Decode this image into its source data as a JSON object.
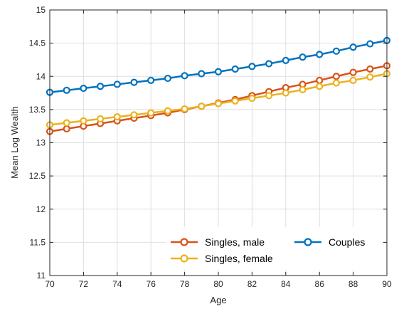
{
  "chart_data": {
    "type": "line",
    "title": "",
    "xlabel": "Age",
    "ylabel": "Mean Log Wealth",
    "xlim": [
      70,
      90
    ],
    "ylim": [
      11,
      15
    ],
    "xticks": [
      70,
      72,
      74,
      76,
      78,
      80,
      82,
      84,
      86,
      88,
      90
    ],
    "yticks": [
      11,
      11.5,
      12,
      12.5,
      13,
      13.5,
      14,
      14.5,
      15
    ],
    "xtick_labels": [
      "70",
      "72",
      "74",
      "76",
      "78",
      "80",
      "82",
      "84",
      "86",
      "88",
      "90"
    ],
    "ytick_labels": [
      "11",
      "11.5",
      "12",
      "12.5",
      "13",
      "13.5",
      "14",
      "14.5",
      "15"
    ],
    "grid": true,
    "legend_placement": "bottom-right",
    "x": [
      70,
      71,
      72,
      73,
      74,
      75,
      76,
      77,
      78,
      79,
      80,
      81,
      82,
      83,
      84,
      85,
      86,
      87,
      88,
      89,
      90
    ],
    "series": [
      {
        "name": "Singles, male",
        "color": "#D95319",
        "marker": "circle",
        "values": [
          13.17,
          13.21,
          13.25,
          13.29,
          13.33,
          13.37,
          13.41,
          13.45,
          13.5,
          13.55,
          13.6,
          13.65,
          13.71,
          13.77,
          13.83,
          13.88,
          13.94,
          14.0,
          14.06,
          14.11,
          14.16
        ]
      },
      {
        "name": "Singles, female",
        "color": "#EDB120",
        "marker": "circle",
        "values": [
          13.27,
          13.3,
          13.33,
          13.36,
          13.39,
          13.42,
          13.45,
          13.48,
          13.51,
          13.55,
          13.59,
          13.63,
          13.67,
          13.71,
          13.75,
          13.8,
          13.85,
          13.9,
          13.94,
          13.99,
          14.04
        ]
      },
      {
        "name": "Couples",
        "color": "#0072BD",
        "marker": "circle",
        "values": [
          13.76,
          13.79,
          13.82,
          13.85,
          13.88,
          13.91,
          13.94,
          13.97,
          14.01,
          14.04,
          14.07,
          14.11,
          14.15,
          14.19,
          14.24,
          14.29,
          14.33,
          14.38,
          14.44,
          14.49,
          14.54
        ]
      }
    ],
    "colors": {
      "axis": "#262626",
      "grid": "#dfdfdf",
      "background": "#ffffff"
    }
  }
}
